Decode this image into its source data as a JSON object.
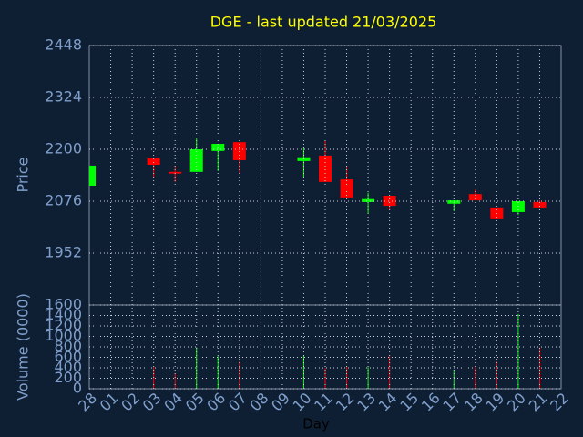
{
  "chart_data": {
    "type": "candlestick",
    "title": "DGE - last updated 21/03/2025",
    "xlabel": "Day",
    "ylabel": "Price",
    "categories": [
      "28",
      "01",
      "02",
      "03",
      "04",
      "05",
      "06",
      "07",
      "08",
      "09",
      "10",
      "11",
      "12",
      "13",
      "14",
      "15",
      "16",
      "17",
      "18",
      "19",
      "20",
      "21",
      "22"
    ],
    "open": [
      2113,
      null,
      null,
      2178,
      2146,
      2146,
      2196,
      2217,
      null,
      null,
      2172,
      2185,
      2128,
      2074,
      2089,
      null,
      null,
      2070,
      2093,
      2061,
      2050,
      2074,
      null
    ],
    "high": [
      2161,
      null,
      null,
      2178,
      2161,
      2226,
      2213,
      2217,
      null,
      null,
      2202,
      2220,
      2159,
      2096,
      2089,
      null,
      null,
      2078,
      2104,
      2061,
      2076,
      2078,
      null
    ],
    "low": [
      2113,
      null,
      null,
      2133,
      2122,
      2146,
      2148,
      2144,
      null,
      null,
      2133,
      2122,
      2085,
      2046,
      2056,
      null,
      null,
      2052,
      2078,
      2035,
      2043,
      2061,
      null
    ],
    "close": [
      2161,
      null,
      null,
      2163,
      2142,
      2200,
      2213,
      2174,
      null,
      null,
      2181,
      2122,
      2085,
      2081,
      2065,
      null,
      null,
      2078,
      2078,
      2035,
      2076,
      2061,
      null
    ],
    "up_color": "#00ff00",
    "down_color": "#ff0000",
    "ylim": [
      1828,
      2448
    ],
    "yticks": [
      1952,
      2076,
      2200,
      2324,
      2448
    ],
    "grid": true,
    "volume": {
      "ylabel": "Volume (0000)",
      "values": [
        null,
        null,
        null,
        413,
        292,
        791,
        620,
        516,
        null,
        null,
        637,
        396,
        413,
        413,
        620,
        null,
        null,
        361,
        413,
        516,
        1428,
        791,
        null
      ],
      "ylim": [
        0,
        1600
      ],
      "yticks": [
        0,
        200,
        400,
        600,
        800,
        1000,
        1200,
        1400,
        1600
      ]
    }
  }
}
